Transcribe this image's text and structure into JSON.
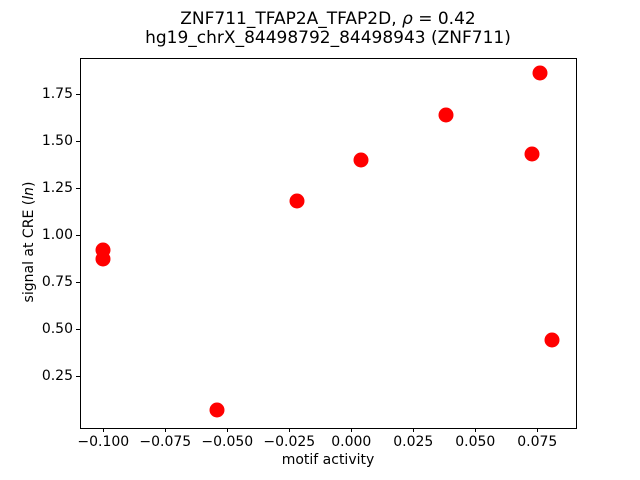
{
  "chart_data": {
    "type": "scatter",
    "title": {
      "line1_prefix": "ZNF711_TFAP2A_TFAP2D, ",
      "line1_rho": "ρ",
      "line1_suffix": " = 0.42",
      "line2": "hg19_chrX_84498792_84498943 (ZNF711)"
    },
    "xlabel": "motif activity",
    "ylabel_prefix": "signal at CRE (",
    "ylabel_italic": "ln",
    "ylabel_suffix": ")",
    "correlation_rho": "0.42",
    "marker_color": "#ff0000",
    "axis_color": "#000000",
    "grid": false,
    "legend": null,
    "xlim": [
      -0.1094,
      0.0906
    ],
    "ylim": [
      -0.0223,
      1.9436
    ],
    "xticks": [
      {
        "v": -0.1,
        "label": "−0.100"
      },
      {
        "v": -0.075,
        "label": "−0.075"
      },
      {
        "v": -0.05,
        "label": "−0.050"
      },
      {
        "v": -0.025,
        "label": "−0.025"
      },
      {
        "v": 0.0,
        "label": "0.000"
      },
      {
        "v": 0.025,
        "label": "0.025"
      },
      {
        "v": 0.05,
        "label": "0.050"
      },
      {
        "v": 0.075,
        "label": "0.075"
      }
    ],
    "yticks": [
      {
        "v": 0.25,
        "label": "0.25"
      },
      {
        "v": 0.5,
        "label": "0.50"
      },
      {
        "v": 0.75,
        "label": "0.75"
      },
      {
        "v": 1.0,
        "label": "1.00"
      },
      {
        "v": 1.25,
        "label": "1.25"
      },
      {
        "v": 1.5,
        "label": "1.50"
      },
      {
        "v": 1.75,
        "label": "1.75"
      }
    ],
    "points": [
      {
        "x": -0.1,
        "y": 0.92
      },
      {
        "x": -0.1,
        "y": 0.87
      },
      {
        "x": -0.054,
        "y": 0.07
      },
      {
        "x": -0.022,
        "y": 1.18
      },
      {
        "x": 0.004,
        "y": 1.4
      },
      {
        "x": 0.038,
        "y": 1.64
      },
      {
        "x": 0.073,
        "y": 1.43
      },
      {
        "x": 0.076,
        "y": 1.86
      },
      {
        "x": 0.081,
        "y": 0.44
      }
    ]
  }
}
